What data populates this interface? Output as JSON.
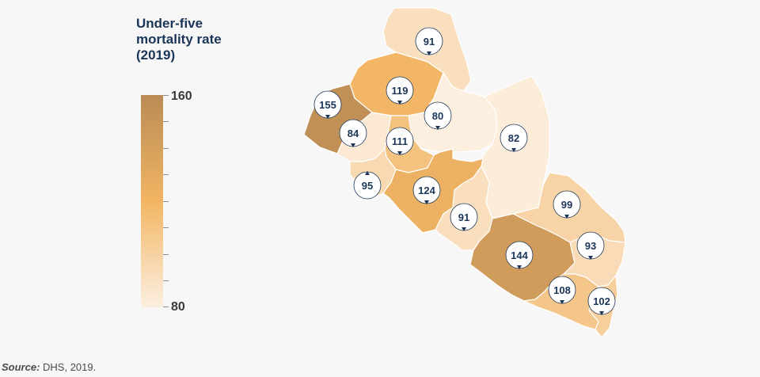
{
  "legend": {
    "title_line1": "Under-five",
    "title_line2": "mortality rate",
    "title_line3": "(2019)",
    "max_label": "160",
    "min_label": "80",
    "min_value": 80,
    "max_value": 160,
    "color_low": "#fcefe0",
    "color_mid": "#f2b563",
    "color_high": "#b98b55"
  },
  "regions": [
    {
      "id": "north-top",
      "value": 91
    },
    {
      "id": "north-mid-left",
      "value": 119
    },
    {
      "id": "north-west",
      "value": 155
    },
    {
      "id": "west-coast",
      "value": 84
    },
    {
      "id": "central-north",
      "value": 80
    },
    {
      "id": "central-west",
      "value": 111
    },
    {
      "id": "east-north",
      "value": 82
    },
    {
      "id": "coast-south",
      "value": 95
    },
    {
      "id": "central",
      "value": 124
    },
    {
      "id": "central-south",
      "value": 91
    },
    {
      "id": "east",
      "value": 99
    },
    {
      "id": "south-central",
      "value": 144
    },
    {
      "id": "south-east",
      "value": 93
    },
    {
      "id": "south",
      "value": 108
    },
    {
      "id": "south-tip",
      "value": 102
    }
  ],
  "labels": {
    "north_top": "91",
    "north_mid_left": "119",
    "north_west": "155",
    "west_coast": "84",
    "central_north": "80",
    "central_west": "111",
    "east_north": "82",
    "coast_south": "95",
    "central": "124",
    "central_south": "91",
    "east": "99",
    "south_central": "144",
    "south_east": "93",
    "south": "108",
    "south_tip": "102"
  },
  "source": {
    "prefix": "Source:",
    "text": " DHS, 2019."
  }
}
